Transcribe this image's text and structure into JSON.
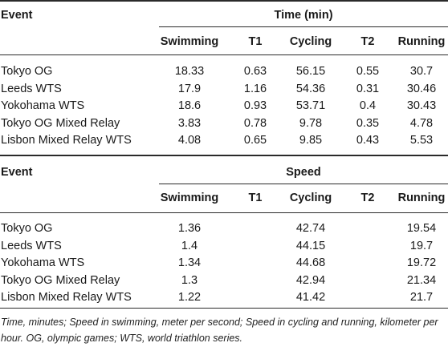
{
  "table1": {
    "event_header": "Event",
    "group_header": "Time (min)",
    "columns": [
      "Swimming",
      "T1",
      "Cycling",
      "T2",
      "Running"
    ],
    "rows": [
      {
        "event": "Tokyo OG",
        "values": [
          "18.33",
          "0.63",
          "56.15",
          "0.55",
          "30.7"
        ]
      },
      {
        "event": "Leeds WTS",
        "values": [
          "17.9",
          "1.16",
          "54.36",
          "0.31",
          "30.46"
        ]
      },
      {
        "event": "Yokohama WTS",
        "values": [
          "18.6",
          "0.93",
          "53.71",
          "0.4",
          "30.43"
        ]
      },
      {
        "event": "Tokyo OG Mixed Relay",
        "values": [
          "3.83",
          "0.78",
          "9.78",
          "0.35",
          "4.78"
        ]
      },
      {
        "event": "Lisbon Mixed Relay WTS",
        "values": [
          "4.08",
          "0.65",
          "9.85",
          "0.43",
          "5.53"
        ]
      }
    ]
  },
  "table2": {
    "event_header": "Event",
    "group_header": "Speed",
    "columns": [
      "Swimming",
      "T1",
      "Cycling",
      "T2",
      "Running"
    ],
    "rows": [
      {
        "event": "Tokyo OG",
        "values": [
          "1.36",
          "",
          "42.74",
          "",
          "19.54"
        ]
      },
      {
        "event": "Leeds WTS",
        "values": [
          "1.4",
          "",
          "44.15",
          "",
          "19.7"
        ]
      },
      {
        "event": "Yokohama WTS",
        "values": [
          "1.34",
          "",
          "44.68",
          "",
          "19.72"
        ]
      },
      {
        "event": "Tokyo OG Mixed Relay",
        "values": [
          "1.3",
          "",
          "42.94",
          "",
          "21.34"
        ]
      },
      {
        "event": "Lisbon Mixed Relay WTS",
        "values": [
          "1.22",
          "",
          "41.42",
          "",
          "21.7"
        ]
      }
    ]
  },
  "caption": "Time, minutes; Speed in swimming, meter per second; Speed in cycling and running, kilometer per hour. OG, olympic games; WTS, world triathlon series."
}
